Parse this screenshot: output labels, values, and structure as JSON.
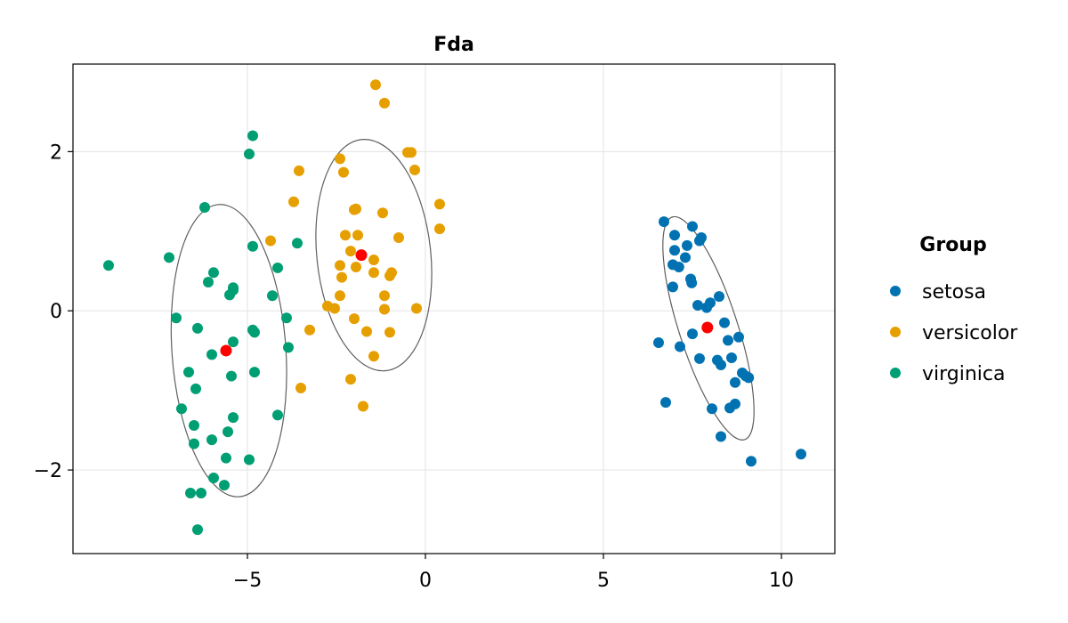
{
  "chart_data": {
    "type": "scatter",
    "title": "Fda",
    "xlabel": "",
    "ylabel": "",
    "xlim": [
      -9.9,
      11.5
    ],
    "ylim": [
      -3.05,
      3.1
    ],
    "x_ticks": [
      -5,
      0,
      5,
      10
    ],
    "x_tick_labels": [
      "−5",
      "0",
      "5",
      "10"
    ],
    "y_ticks": [
      -2,
      0,
      2
    ],
    "y_tick_labels": [
      "−2",
      "0",
      "2"
    ],
    "grid": true,
    "legend": {
      "title": "Group",
      "placement": "right"
    },
    "series": [
      {
        "name": "setosa",
        "color": "#0072b2",
        "points": [
          [
            6.7,
            1.12
          ],
          [
            7.5,
            1.06
          ],
          [
            7.0,
            0.95
          ],
          [
            7.75,
            0.92
          ],
          [
            7.7,
            0.88
          ],
          [
            7.35,
            0.82
          ],
          [
            7.0,
            0.76
          ],
          [
            7.3,
            0.67
          ],
          [
            6.95,
            0.58
          ],
          [
            7.12,
            0.55
          ],
          [
            7.45,
            0.4
          ],
          [
            7.48,
            0.35
          ],
          [
            6.95,
            0.3
          ],
          [
            8.25,
            0.18
          ],
          [
            8.0,
            0.1
          ],
          [
            7.65,
            0.07
          ],
          [
            7.9,
            0.04
          ],
          [
            8.4,
            -0.15
          ],
          [
            7.5,
            -0.29
          ],
          [
            8.8,
            -0.33
          ],
          [
            8.5,
            -0.37
          ],
          [
            6.55,
            -0.4
          ],
          [
            7.15,
            -0.45
          ],
          [
            7.7,
            -0.6
          ],
          [
            8.2,
            -0.62
          ],
          [
            8.6,
            -0.59
          ],
          [
            8.3,
            -0.68
          ],
          [
            8.9,
            -0.78
          ],
          [
            9.0,
            -0.82
          ],
          [
            9.08,
            -0.84
          ],
          [
            8.7,
            -0.9
          ],
          [
            6.75,
            -1.15
          ],
          [
            8.7,
            -1.17
          ],
          [
            8.55,
            -1.22
          ],
          [
            8.05,
            -1.23
          ],
          [
            8.3,
            -1.58
          ],
          [
            10.55,
            -1.8
          ],
          [
            9.15,
            -1.89
          ]
        ]
      },
      {
        "name": "versicolor",
        "color": "#e69f00",
        "points": [
          [
            -1.4,
            2.84
          ],
          [
            -1.15,
            2.61
          ],
          [
            -0.5,
            1.99
          ],
          [
            -0.4,
            1.99
          ],
          [
            -2.4,
            1.91
          ],
          [
            -0.3,
            1.77
          ],
          [
            -3.55,
            1.76
          ],
          [
            -2.3,
            1.74
          ],
          [
            -3.7,
            1.37
          ],
          [
            0.4,
            1.34
          ],
          [
            -1.95,
            1.28
          ],
          [
            -2.0,
            1.27
          ],
          [
            -1.2,
            1.23
          ],
          [
            0.4,
            1.03
          ],
          [
            -2.25,
            0.95
          ],
          [
            -1.9,
            0.95
          ],
          [
            -0.75,
            0.92
          ],
          [
            -4.35,
            0.88
          ],
          [
            -2.1,
            0.75
          ],
          [
            -1.45,
            0.64
          ],
          [
            -2.4,
            0.57
          ],
          [
            -1.95,
            0.55
          ],
          [
            -1.45,
            0.48
          ],
          [
            -0.95,
            0.48
          ],
          [
            -1.0,
            0.44
          ],
          [
            -2.35,
            0.42
          ],
          [
            -2.4,
            0.19
          ],
          [
            -1.15,
            0.19
          ],
          [
            -2.75,
            0.06
          ],
          [
            -2.55,
            0.03
          ],
          [
            -1.15,
            0.02
          ],
          [
            -0.25,
            0.03
          ],
          [
            -2.0,
            -0.1
          ],
          [
            -3.25,
            -0.24
          ],
          [
            -1.65,
            -0.26
          ],
          [
            -1.0,
            -0.27
          ],
          [
            -1.45,
            -0.57
          ],
          [
            -2.1,
            -0.86
          ],
          [
            -3.5,
            -0.97
          ],
          [
            -1.75,
            -1.2
          ]
        ]
      },
      {
        "name": "virginica",
        "color": "#009e73",
        "points": [
          [
            -4.85,
            2.2
          ],
          [
            -4.95,
            1.97
          ],
          [
            -6.2,
            1.3
          ],
          [
            -4.85,
            0.81
          ],
          [
            -3.6,
            0.85
          ],
          [
            -7.2,
            0.67
          ],
          [
            -8.9,
            0.57
          ],
          [
            -4.15,
            0.54
          ],
          [
            -5.95,
            0.48
          ],
          [
            -6.1,
            0.36
          ],
          [
            -5.4,
            0.29
          ],
          [
            -5.4,
            0.26
          ],
          [
            -5.5,
            0.2
          ],
          [
            -4.3,
            0.19
          ],
          [
            -3.9,
            -0.09
          ],
          [
            -7.0,
            -0.09
          ],
          [
            -6.4,
            -0.22
          ],
          [
            -4.85,
            -0.24
          ],
          [
            -4.8,
            -0.27
          ],
          [
            -5.4,
            -0.39
          ],
          [
            -3.85,
            -0.46
          ],
          [
            -6.0,
            -0.55
          ],
          [
            -6.65,
            -0.77
          ],
          [
            -4.8,
            -0.77
          ],
          [
            -5.45,
            -0.82
          ],
          [
            -6.45,
            -0.98
          ],
          [
            -6.85,
            -1.23
          ],
          [
            -4.15,
            -1.31
          ],
          [
            -5.4,
            -1.34
          ],
          [
            -6.5,
            -1.44
          ],
          [
            -5.55,
            -1.52
          ],
          [
            -6.0,
            -1.62
          ],
          [
            -6.5,
            -1.67
          ],
          [
            -5.6,
            -1.85
          ],
          [
            -4.95,
            -1.87
          ],
          [
            -5.95,
            -2.1
          ],
          [
            -5.65,
            -2.19
          ],
          [
            -6.6,
            -2.29
          ],
          [
            -6.3,
            -2.29
          ],
          [
            -6.4,
            -2.75
          ]
        ]
      }
    ],
    "centroids": {
      "color": "#ff0000",
      "points": [
        [
          7.92,
          -0.21
        ],
        [
          -1.8,
          0.7
        ],
        [
          -5.6,
          -0.5
        ]
      ]
    },
    "ellipses": [
      {
        "center": [
          7.95,
          -0.22
        ],
        "rx": 0.82,
        "ry": 1.47,
        "tilt_deg": 18
      },
      {
        "center": [
          -1.45,
          0.7
        ],
        "rx": 1.6,
        "ry": 1.46,
        "tilt_deg": 6
      },
      {
        "center": [
          -5.52,
          -0.5
        ],
        "rx": 1.6,
        "ry": 1.84,
        "tilt_deg": 4
      }
    ]
  }
}
